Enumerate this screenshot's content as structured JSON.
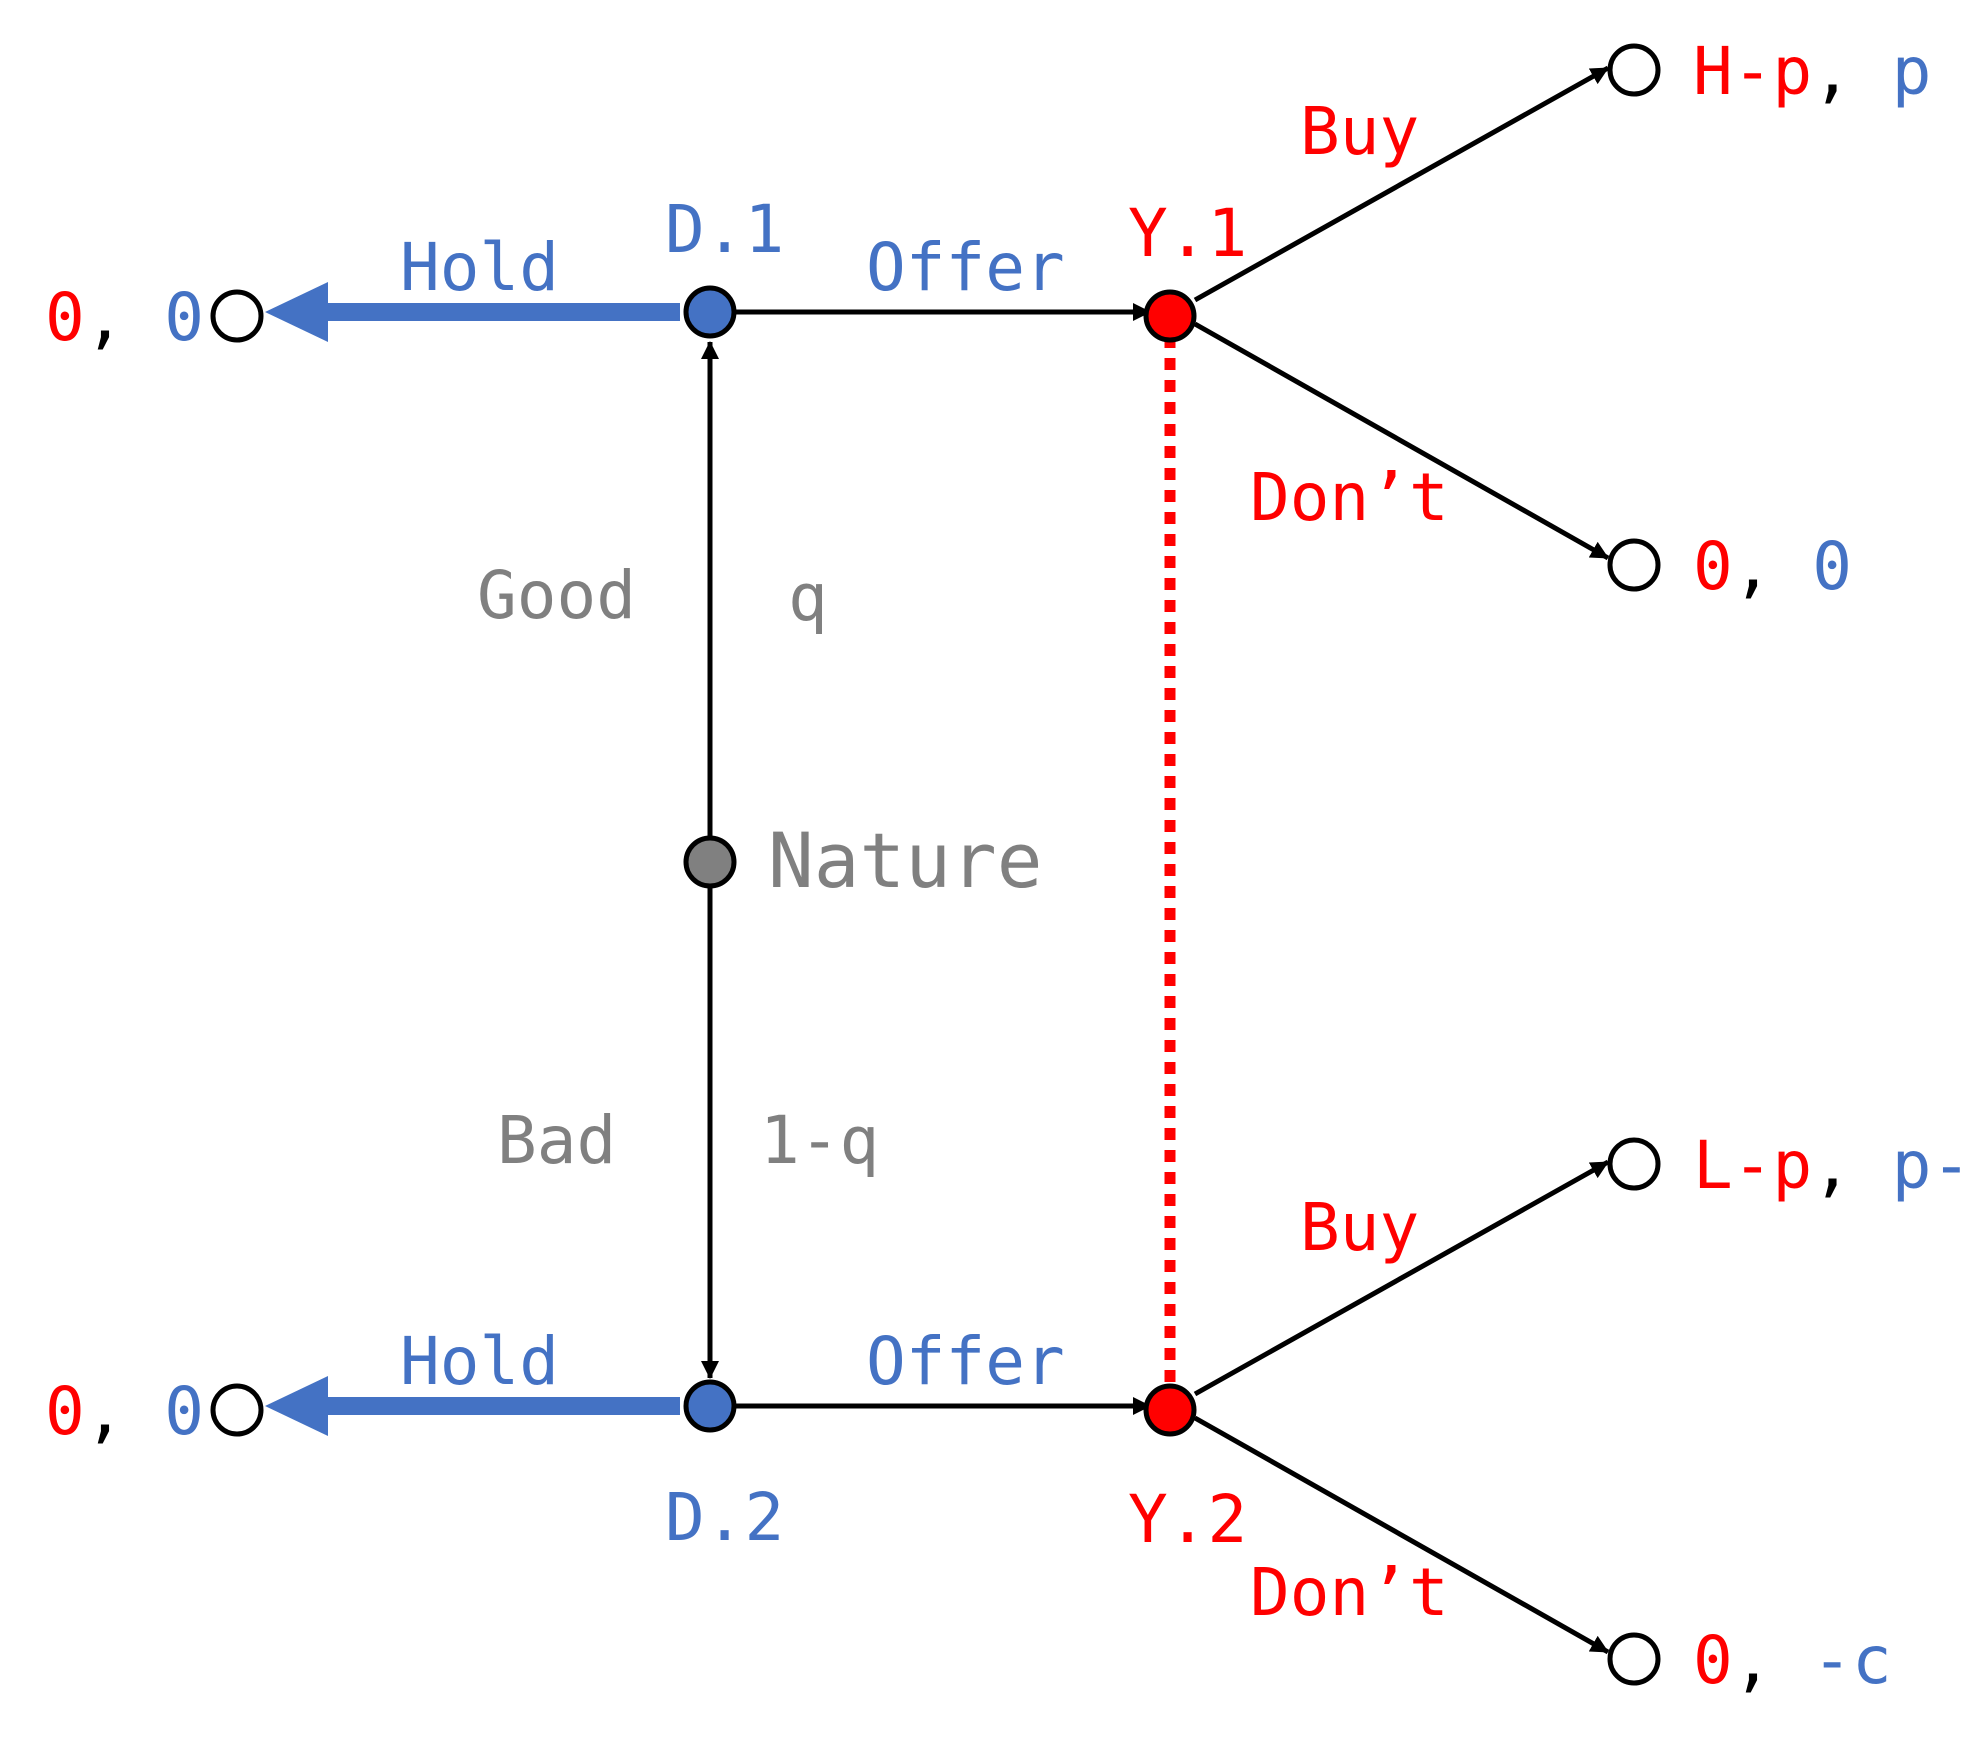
{
  "colors": {
    "dealer": "#4472c4",
    "you": "#ff0000",
    "nature": "#808080",
    "line": "#000000"
  },
  "nodes": {
    "d1": "D.1",
    "d2": "D.2",
    "y1": "Y.1",
    "y2": "Y.2",
    "nature": "Nature"
  },
  "actions": {
    "hold_top": "Hold",
    "hold_bottom": "Hold",
    "offer_top": "Offer",
    "offer_bottom": "Offer",
    "buy_top": "Buy",
    "buy_bottom": "Buy",
    "dont_top": "Don’t",
    "dont_bottom": "Don’t",
    "good": "Good",
    "bad": "Bad",
    "prob_good": "q",
    "prob_bad": "1-q"
  },
  "payoffs": {
    "hold_top": {
      "you": "0",
      "sep": ", ",
      "dealer": "0"
    },
    "hold_bottom": {
      "you": "0",
      "sep": ", ",
      "dealer": "0"
    },
    "buy_top": {
      "you": "H-p",
      "sep": ", ",
      "dealer": "p"
    },
    "dont_top": {
      "you": "0",
      "sep": ", ",
      "dealer": "0"
    },
    "buy_bottom": {
      "you": "L-p",
      "sep": ", ",
      "dealer": "p-c"
    },
    "dont_bottom": {
      "you": "0",
      "sep": ", ",
      "dealer": "-c"
    }
  }
}
